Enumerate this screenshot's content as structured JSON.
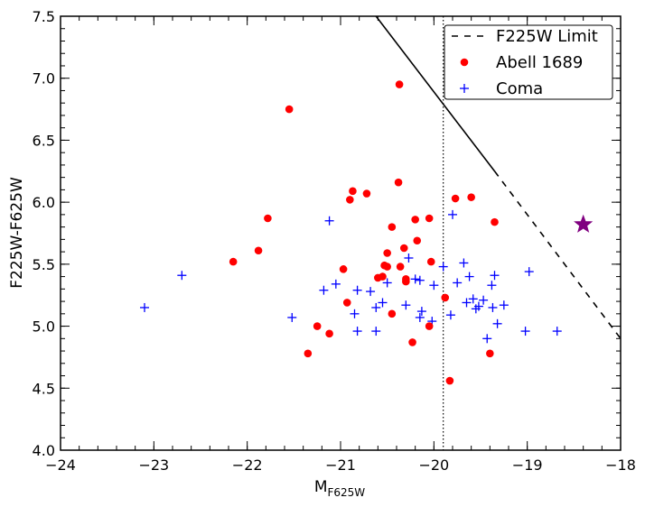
{
  "chart_data": {
    "type": "scatter",
    "xlabel": "M",
    "xlabel_sub": "F625W",
    "ylabel": "F225W-F625W",
    "xlim": [
      -24,
      -18
    ],
    "ylim": [
      4.0,
      7.5
    ],
    "xticks": [
      -24,
      -23,
      -22,
      -21,
      -20,
      -19,
      -18
    ],
    "xtick_labels": [
      "−24",
      "−23",
      "−22",
      "−21",
      "−20",
      "−19",
      "−18"
    ],
    "yticks": [
      4.0,
      4.5,
      5.0,
      5.5,
      6.0,
      6.5,
      7.0,
      7.5
    ],
    "ytick_labels": [
      "4.0",
      "4.5",
      "5.0",
      "5.5",
      "6.0",
      "6.5",
      "7.0",
      "7.5"
    ],
    "grid": false,
    "legend_position": "top-right",
    "series": [
      {
        "name": "F225W Limit",
        "kind": "line",
        "solid_segment": [
          [
            -20.62,
            7.5
          ],
          [
            -19.35,
            6.25
          ]
        ],
        "dashed_segment": [
          [
            -19.35,
            6.25
          ],
          [
            -18.0,
            4.9
          ]
        ],
        "color": "#000000"
      },
      {
        "name": "Abell 1689",
        "kind": "points",
        "marker": "circle",
        "color": "#ff0000",
        "points": [
          [
            -21.55,
            6.75
          ],
          [
            -20.37,
            6.95
          ],
          [
            -21.78,
            5.87
          ],
          [
            -21.88,
            5.61
          ],
          [
            -22.15,
            5.52
          ],
          [
            -20.9,
            6.02
          ],
          [
            -20.87,
            6.09
          ],
          [
            -20.72,
            6.07
          ],
          [
            -20.38,
            6.16
          ],
          [
            -20.45,
            5.8
          ],
          [
            -20.2,
            5.86
          ],
          [
            -20.05,
            5.87
          ],
          [
            -20.18,
            5.69
          ],
          [
            -19.77,
            6.03
          ],
          [
            -19.6,
            6.04
          ],
          [
            -19.35,
            5.84
          ],
          [
            -20.32,
            5.63
          ],
          [
            -20.5,
            5.59
          ],
          [
            -20.36,
            5.48
          ],
          [
            -20.03,
            5.52
          ],
          [
            -20.53,
            5.49
          ],
          [
            -20.5,
            5.48
          ],
          [
            -20.97,
            5.46
          ],
          [
            -20.6,
            5.39
          ],
          [
            -20.55,
            5.4
          ],
          [
            -20.3,
            5.38
          ],
          [
            -20.3,
            5.36
          ],
          [
            -20.93,
            5.19
          ],
          [
            -19.88,
            5.23
          ],
          [
            -20.45,
            5.1
          ],
          [
            -21.25,
            5.0
          ],
          [
            -20.05,
            5.0
          ],
          [
            -21.12,
            4.94
          ],
          [
            -20.23,
            4.87
          ],
          [
            -21.35,
            4.78
          ],
          [
            -19.4,
            4.78
          ],
          [
            -19.83,
            4.56
          ]
        ]
      },
      {
        "name": "Coma",
        "kind": "points",
        "marker": "plus",
        "color": "#0000ff",
        "points": [
          [
            -23.1,
            5.15
          ],
          [
            -22.7,
            5.41
          ],
          [
            -21.12,
            5.85
          ],
          [
            -19.8,
            5.9
          ],
          [
            -21.52,
            5.07
          ],
          [
            -21.18,
            5.29
          ],
          [
            -21.05,
            5.34
          ],
          [
            -20.82,
            5.29
          ],
          [
            -20.68,
            5.28
          ],
          [
            -20.5,
            5.35
          ],
          [
            -20.27,
            5.55
          ],
          [
            -20.2,
            5.38
          ],
          [
            -20.15,
            5.37
          ],
          [
            -20.0,
            5.33
          ],
          [
            -19.9,
            5.48
          ],
          [
            -19.68,
            5.51
          ],
          [
            -19.62,
            5.4
          ],
          [
            -19.35,
            5.41
          ],
          [
            -19.38,
            5.33
          ],
          [
            -18.98,
            5.44
          ],
          [
            -19.75,
            5.35
          ],
          [
            -20.62,
            5.15
          ],
          [
            -20.55,
            5.19
          ],
          [
            -20.3,
            5.17
          ],
          [
            -20.13,
            5.12
          ],
          [
            -20.15,
            5.07
          ],
          [
            -20.02,
            5.04
          ],
          [
            -19.82,
            5.09
          ],
          [
            -19.65,
            5.19
          ],
          [
            -19.58,
            5.22
          ],
          [
            -19.52,
            5.16
          ],
          [
            -19.55,
            5.14
          ],
          [
            -19.47,
            5.21
          ],
          [
            -19.37,
            5.15
          ],
          [
            -19.25,
            5.17
          ],
          [
            -19.32,
            5.02
          ],
          [
            -19.43,
            4.9
          ],
          [
            -20.85,
            5.1
          ],
          [
            -20.82,
            4.96
          ],
          [
            -20.62,
            4.96
          ],
          [
            -19.02,
            4.96
          ],
          [
            -18.68,
            4.96
          ]
        ]
      },
      {
        "name": "",
        "kind": "points",
        "marker": "star",
        "color": "#800080",
        "points": [
          [
            -18.4,
            5.82
          ]
        ]
      }
    ],
    "annotations": [
      {
        "type": "vertical-dotted-line",
        "x": -19.9
      }
    ]
  }
}
